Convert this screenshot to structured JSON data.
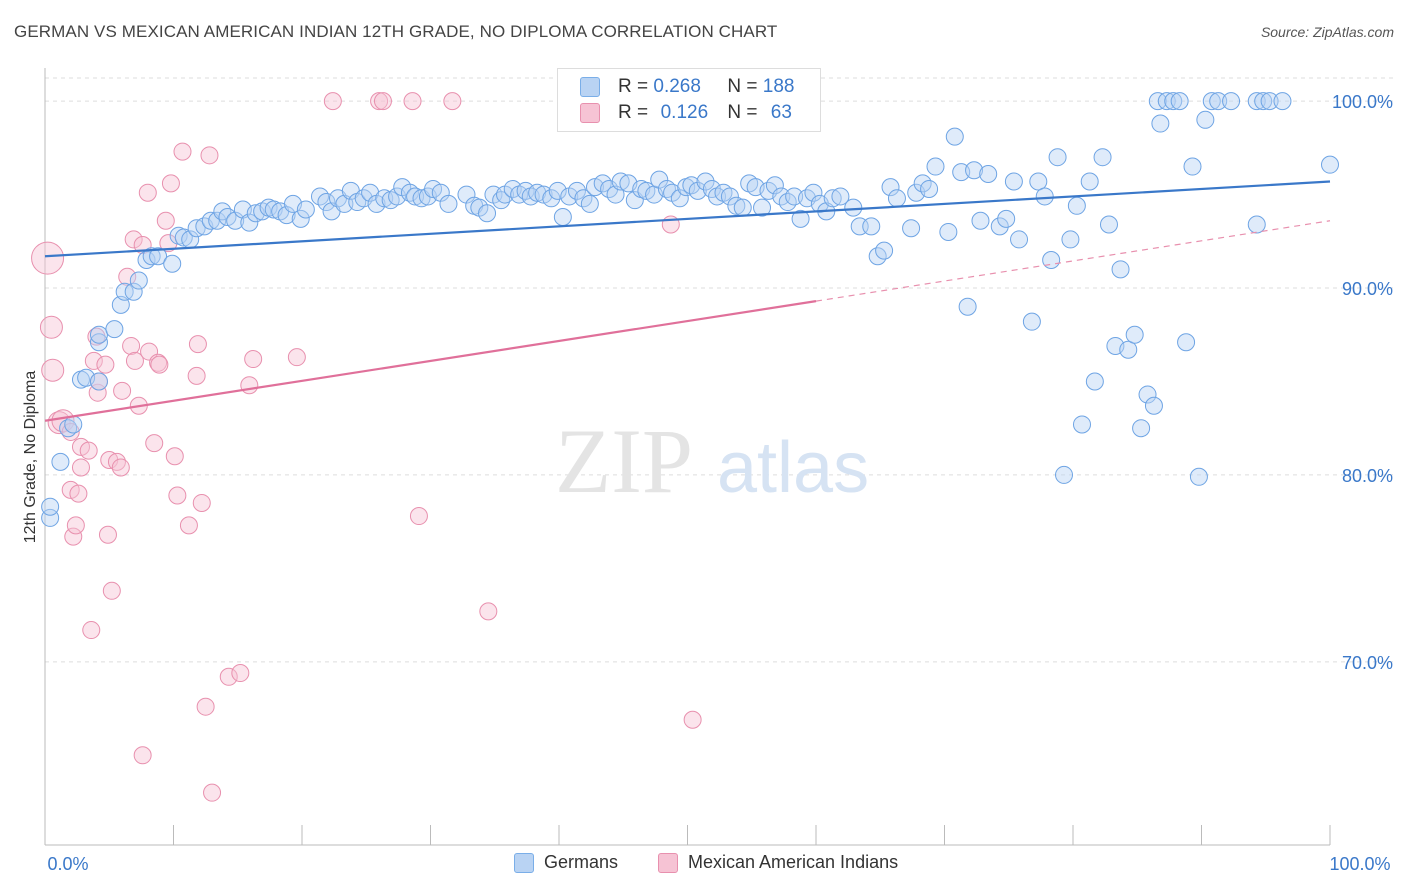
{
  "title": "GERMAN VS MEXICAN AMERICAN INDIAN 12TH GRADE, NO DIPLOMA CORRELATION CHART",
  "source": "Source: ZipAtlas.com",
  "watermark": {
    "zip": "ZIP",
    "atlas": "atlas"
  },
  "legend": {
    "r_label": "R =",
    "n_label": "N =",
    "series": [
      {
        "name": "Germans",
        "r": "0.268",
        "n": "188",
        "color": "#7aaee8",
        "fill": "#b9d3f3"
      },
      {
        "name": "Mexican American Indians",
        "r": "0.126",
        "n": "63",
        "color": "#e890ae",
        "fill": "#f6c3d4"
      }
    ]
  },
  "chart_data": {
    "type": "scatter",
    "xlabel": "",
    "ylabel": "12th Grade, No Diploma",
    "xlim": [
      0,
      100
    ],
    "ylim": [
      60.2,
      102.2
    ],
    "x_tick_labels": [
      "0.0%",
      "100.0%"
    ],
    "y_ticks": [
      70,
      80,
      90,
      100
    ],
    "y_tick_labels": [
      "70.0%",
      "80.0%",
      "90.0%",
      "100.0%"
    ],
    "grid": true,
    "series": [
      {
        "name": "Germans",
        "color": "#7aaee8",
        "trend": {
          "x": [
            0,
            100
          ],
          "y": [
            91.7,
            95.7
          ],
          "dashed_from": null
        },
        "points": [
          [
            0.4,
            77.7
          ],
          [
            0.4,
            78.3
          ],
          [
            1.2,
            80.7
          ],
          [
            1.8,
            82.5
          ],
          [
            2.2,
            82.7
          ],
          [
            2.8,
            85.1
          ],
          [
            3.2,
            85.2
          ],
          [
            4.2,
            87.1
          ],
          [
            4.2,
            87.5
          ],
          [
            4.2,
            85.0
          ],
          [
            5.4,
            87.8
          ],
          [
            5.9,
            89.1
          ],
          [
            6.2,
            89.8
          ],
          [
            6.9,
            89.8
          ],
          [
            7.3,
            90.4
          ],
          [
            7.9,
            91.5
          ],
          [
            8.3,
            91.7
          ],
          [
            8.8,
            91.7
          ],
          [
            9.9,
            91.3
          ],
          [
            10.4,
            92.8
          ],
          [
            10.8,
            92.7
          ],
          [
            11.3,
            92.6
          ],
          [
            11.8,
            93.2
          ],
          [
            12.4,
            93.3
          ],
          [
            12.9,
            93.6
          ],
          [
            13.4,
            93.6
          ],
          [
            13.8,
            94.1
          ],
          [
            14.2,
            93.8
          ],
          [
            14.8,
            93.6
          ],
          [
            15.4,
            94.2
          ],
          [
            15.9,
            93.5
          ],
          [
            16.4,
            94.0
          ],
          [
            16.9,
            94.1
          ],
          [
            17.4,
            94.3
          ],
          [
            17.8,
            94.2
          ],
          [
            18.3,
            94.1
          ],
          [
            18.8,
            93.9
          ],
          [
            19.3,
            94.5
          ],
          [
            19.9,
            93.7
          ],
          [
            20.3,
            94.2
          ],
          [
            21.4,
            94.9
          ],
          [
            21.9,
            94.6
          ],
          [
            22.3,
            94.1
          ],
          [
            22.8,
            94.8
          ],
          [
            23.3,
            94.5
          ],
          [
            23.8,
            95.2
          ],
          [
            24.3,
            94.6
          ],
          [
            24.8,
            94.8
          ],
          [
            25.3,
            95.1
          ],
          [
            25.8,
            94.5
          ],
          [
            26.4,
            94.8
          ],
          [
            26.9,
            94.7
          ],
          [
            27.4,
            94.9
          ],
          [
            27.8,
            95.4
          ],
          [
            28.4,
            95.1
          ],
          [
            28.8,
            94.9
          ],
          [
            29.3,
            94.8
          ],
          [
            29.8,
            94.9
          ],
          [
            30.2,
            95.3
          ],
          [
            30.8,
            95.1
          ],
          [
            31.4,
            94.5
          ],
          [
            32.8,
            95.0
          ],
          [
            33.4,
            94.4
          ],
          [
            33.8,
            94.3
          ],
          [
            34.4,
            94.0
          ],
          [
            34.9,
            95.0
          ],
          [
            35.5,
            94.7
          ],
          [
            35.8,
            95.0
          ],
          [
            36.4,
            95.3
          ],
          [
            36.9,
            95.0
          ],
          [
            37.4,
            95.2
          ],
          [
            37.8,
            94.9
          ],
          [
            38.3,
            95.1
          ],
          [
            38.8,
            95.0
          ],
          [
            39.4,
            94.8
          ],
          [
            39.9,
            95.2
          ],
          [
            40.3,
            93.8
          ],
          [
            40.8,
            94.9
          ],
          [
            41.4,
            95.2
          ],
          [
            41.9,
            94.8
          ],
          [
            42.4,
            94.5
          ],
          [
            42.8,
            95.4
          ],
          [
            43.4,
            95.6
          ],
          [
            43.9,
            95.3
          ],
          [
            44.4,
            95.0
          ],
          [
            44.8,
            95.7
          ],
          [
            45.4,
            95.6
          ],
          [
            45.9,
            94.7
          ],
          [
            46.4,
            95.3
          ],
          [
            46.8,
            95.2
          ],
          [
            47.4,
            95.0
          ],
          [
            47.8,
            95.8
          ],
          [
            48.4,
            95.3
          ],
          [
            48.8,
            95.1
          ],
          [
            49.4,
            94.8
          ],
          [
            49.9,
            95.4
          ],
          [
            50.3,
            95.5
          ],
          [
            50.8,
            95.2
          ],
          [
            51.4,
            95.7
          ],
          [
            51.9,
            95.3
          ],
          [
            52.3,
            94.9
          ],
          [
            52.8,
            95.1
          ],
          [
            53.3,
            94.9
          ],
          [
            53.8,
            94.4
          ],
          [
            54.3,
            94.3
          ],
          [
            54.8,
            95.6
          ],
          [
            55.3,
            95.4
          ],
          [
            55.8,
            94.3
          ],
          [
            56.3,
            95.2
          ],
          [
            56.8,
            95.5
          ],
          [
            57.3,
            94.9
          ],
          [
            57.8,
            94.6
          ],
          [
            58.3,
            94.9
          ],
          [
            58.8,
            93.7
          ],
          [
            59.3,
            94.8
          ],
          [
            59.8,
            95.1
          ],
          [
            60.3,
            94.5
          ],
          [
            60.8,
            94.1
          ],
          [
            61.3,
            94.8
          ],
          [
            61.9,
            94.9
          ],
          [
            62.9,
            94.3
          ],
          [
            63.4,
            93.3
          ],
          [
            64.3,
            93.3
          ],
          [
            64.8,
            91.7
          ],
          [
            65.3,
            92.0
          ],
          [
            65.8,
            95.4
          ],
          [
            66.3,
            94.8
          ],
          [
            67.4,
            93.2
          ],
          [
            67.8,
            95.1
          ],
          [
            68.3,
            95.6
          ],
          [
            68.8,
            95.3
          ],
          [
            69.3,
            96.5
          ],
          [
            70.3,
            93.0
          ],
          [
            70.8,
            98.1
          ],
          [
            71.3,
            96.2
          ],
          [
            71.8,
            89.0
          ],
          [
            72.3,
            96.3
          ],
          [
            72.8,
            93.6
          ],
          [
            73.4,
            96.1
          ],
          [
            74.3,
            93.3
          ],
          [
            74.8,
            93.7
          ],
          [
            75.4,
            95.7
          ],
          [
            75.8,
            92.6
          ],
          [
            76.8,
            88.2
          ],
          [
            77.3,
            95.7
          ],
          [
            77.8,
            94.9
          ],
          [
            78.3,
            91.5
          ],
          [
            78.8,
            97.0
          ],
          [
            79.3,
            80.0
          ],
          [
            79.8,
            92.6
          ],
          [
            80.3,
            94.4
          ],
          [
            80.7,
            82.7
          ],
          [
            81.3,
            95.7
          ],
          [
            81.7,
            85.0
          ],
          [
            82.3,
            97.0
          ],
          [
            82.8,
            93.4
          ],
          [
            83.3,
            86.9
          ],
          [
            83.7,
            91.0
          ],
          [
            84.3,
            86.7
          ],
          [
            84.8,
            87.5
          ],
          [
            85.3,
            82.5
          ],
          [
            85.8,
            84.3
          ],
          [
            86.3,
            83.7
          ],
          [
            86.6,
            100.0
          ],
          [
            86.8,
            98.8
          ],
          [
            87.3,
            100.0
          ],
          [
            87.8,
            100.0
          ],
          [
            88.3,
            100.0
          ],
          [
            88.8,
            87.1
          ],
          [
            89.3,
            96.5
          ],
          [
            89.8,
            79.9
          ],
          [
            90.3,
            99.0
          ],
          [
            90.8,
            100.0
          ],
          [
            91.3,
            100.0
          ],
          [
            92.3,
            100.0
          ],
          [
            94.3,
            100.0
          ],
          [
            94.8,
            100.0
          ],
          [
            95.3,
            100.0
          ],
          [
            96.3,
            100.0
          ],
          [
            94.3,
            93.4
          ],
          [
            100.0,
            96.6
          ]
        ]
      },
      {
        "name": "Mexican American Indians",
        "color": "#e890ae",
        "trend": {
          "x": [
            0,
            60
          ],
          "y": [
            82.9,
            89.3
          ],
          "dashed_to": [
            100,
            93.6
          ]
        },
        "points": [
          [
            0.2,
            91.6
          ],
          [
            0.5,
            87.9
          ],
          [
            0.6,
            85.6
          ],
          [
            1.1,
            82.8
          ],
          [
            1.4,
            82.9
          ],
          [
            2.0,
            82.3
          ],
          [
            2.0,
            79.2
          ],
          [
            2.2,
            76.7
          ],
          [
            2.4,
            77.3
          ],
          [
            2.6,
            79.0
          ],
          [
            2.8,
            80.4
          ],
          [
            2.8,
            81.5
          ],
          [
            3.4,
            81.3
          ],
          [
            3.6,
            71.7
          ],
          [
            3.8,
            86.1
          ],
          [
            4.0,
            87.4
          ],
          [
            4.1,
            84.4
          ],
          [
            4.2,
            85.0
          ],
          [
            4.7,
            85.9
          ],
          [
            4.9,
            76.8
          ],
          [
            5.0,
            80.8
          ],
          [
            5.2,
            73.8
          ],
          [
            5.6,
            80.7
          ],
          [
            5.9,
            80.4
          ],
          [
            6.0,
            84.5
          ],
          [
            6.4,
            90.6
          ],
          [
            6.7,
            86.9
          ],
          [
            6.9,
            92.6
          ],
          [
            7.0,
            86.1
          ],
          [
            7.3,
            83.7
          ],
          [
            7.6,
            92.3
          ],
          [
            7.6,
            65.0
          ],
          [
            8.0,
            95.1
          ],
          [
            8.1,
            86.6
          ],
          [
            8.5,
            81.7
          ],
          [
            8.8,
            86.0
          ],
          [
            8.9,
            85.9
          ],
          [
            9.4,
            93.6
          ],
          [
            9.6,
            92.4
          ],
          [
            9.8,
            95.6
          ],
          [
            10.1,
            81.0
          ],
          [
            10.3,
            78.9
          ],
          [
            10.7,
            97.3
          ],
          [
            11.2,
            77.3
          ],
          [
            11.8,
            85.3
          ],
          [
            11.9,
            87.0
          ],
          [
            12.2,
            78.5
          ],
          [
            12.5,
            67.6
          ],
          [
            12.8,
            97.1
          ],
          [
            13.0,
            63.0
          ],
          [
            14.3,
            69.2
          ],
          [
            15.2,
            69.4
          ],
          [
            15.9,
            84.8
          ],
          [
            16.2,
            86.2
          ],
          [
            19.6,
            86.3
          ],
          [
            22.4,
            100.0
          ],
          [
            26.0,
            100.0
          ],
          [
            26.3,
            100.0
          ],
          [
            28.6,
            100.0
          ],
          [
            29.1,
            77.8
          ],
          [
            31.7,
            100.0
          ],
          [
            34.5,
            72.7
          ],
          [
            48.7,
            93.4
          ],
          [
            50.4,
            66.9
          ]
        ]
      }
    ]
  }
}
